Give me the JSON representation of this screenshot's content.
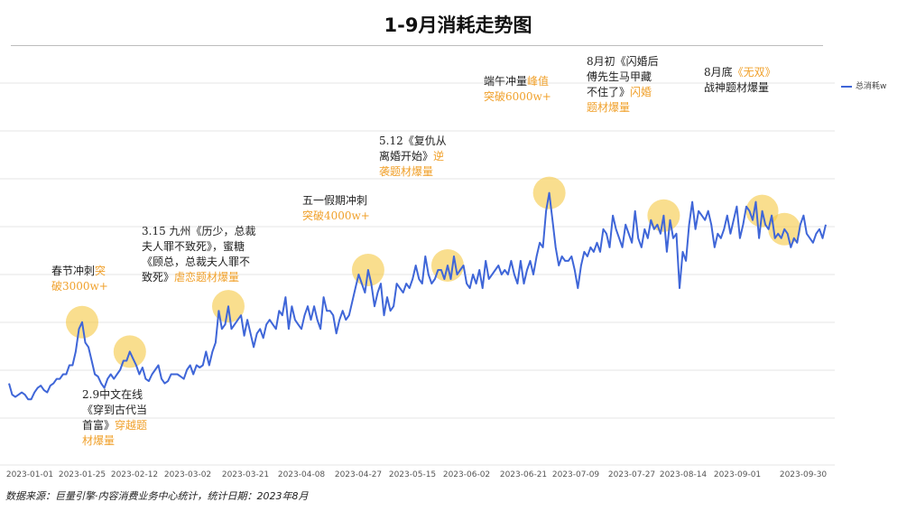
{
  "chart_data": {
    "type": "line",
    "title": "1-9月消耗走势图",
    "xlabel": "",
    "ylabel": "",
    "series_name": "总消耗w",
    "line_color": "#3f66d8",
    "highlight_color": "#f5c842",
    "accent_color": "#f0a02a",
    "grid": true,
    "legend": "right",
    "x_ticks": [
      "2023-01-01",
      "2023-01-25",
      "2023-02-12",
      "2023-03-02",
      "2023-03-21",
      "2023-04-08",
      "2023-04-27",
      "2023-05-15",
      "2023-06-02",
      "2023-06-21",
      "2023-07-09",
      "2023-07-27",
      "2023-08-14",
      "2023-09-01",
      "2023-09-30"
    ],
    "x_range": [
      0,
      272
    ],
    "ylim": [
      0,
      8500
    ],
    "values": [
      1800,
      1550,
      1500,
      1550,
      1600,
      1550,
      1450,
      1450,
      1600,
      1700,
      1750,
      1650,
      1600,
      1750,
      1800,
      1900,
      1900,
      2000,
      2000,
      2200,
      2200,
      2500,
      3000,
      3150,
      2700,
      2600,
      2300,
      2000,
      1950,
      1800,
      1700,
      1900,
      2000,
      1900,
      2000,
      2100,
      2300,
      2300,
      2500,
      2350,
      2200,
      2000,
      2150,
      1900,
      1850,
      2000,
      2100,
      2200,
      1900,
      1800,
      1850,
      2000,
      2000,
      2000,
      1950,
      1900,
      2100,
      2200,
      2000,
      2200,
      2150,
      2200,
      2500,
      2200,
      2500,
      2700,
      3400,
      3000,
      3100,
      3500,
      3000,
      3100,
      3200,
      3300,
      2850,
      3200,
      2900,
      2600,
      2900,
      3000,
      2800,
      3100,
      3200,
      3100,
      3000,
      3400,
      3300,
      3700,
      3000,
      3500,
      3200,
      3100,
      3000,
      3300,
      3500,
      3200,
      3500,
      3200,
      3000,
      3700,
      3400,
      3400,
      3300,
      2900,
      3200,
      3400,
      3200,
      3300,
      3600,
      3900,
      4200,
      4000,
      3800,
      4300,
      4000,
      3500,
      3800,
      4000,
      3300,
      3700,
      3400,
      3500,
      4000,
      3900,
      3800,
      4000,
      3900,
      4100,
      4400,
      4100,
      4000,
      4600,
      4200,
      4000,
      4100,
      4300,
      4300,
      4100,
      4400,
      4100,
      4600,
      4200,
      4300,
      4400,
      4000,
      3900,
      4200,
      4000,
      4300,
      3900,
      4500,
      4100,
      4200,
      4300,
      4400,
      4200,
      4300,
      4200,
      4500,
      4200,
      4000,
      4500,
      4000,
      4300,
      4500,
      4200,
      4600,
      4900,
      4800,
      5600,
      6000,
      5400,
      4800,
      4400,
      4600,
      4500,
      4500,
      4600,
      4300,
      3900,
      4400,
      4700,
      4600,
      4800,
      4700,
      4900,
      4700,
      5200,
      5100,
      4800,
      5500,
      5200,
      5000,
      4800,
      5300,
      5100,
      4900,
      5600,
      5000,
      4800,
      5200,
      5000,
      5400,
      5200,
      5300,
      5100,
      5500,
      4700,
      5400,
      5000,
      5100,
      3900,
      4700,
      4500,
      5300,
      5800,
      5200,
      5600,
      5500,
      5400,
      5600,
      5300,
      4800,
      5100,
      5000,
      5200,
      5500,
      5100,
      5400,
      5700,
      5000,
      5300,
      5700,
      5600,
      5400,
      5800,
      5000,
      5600,
      5300,
      5200,
      5500,
      5000,
      5100,
      5000,
      5200,
      5100,
      4800,
      5000,
      4900,
      5300,
      5500,
      5100,
      5000,
      4900,
      5100,
      5200,
      5000,
      5300
    ],
    "highlights": [
      {
        "i": 22,
        "label_black": "春节冲刺",
        "label_orange": "突破3000w+"
      },
      {
        "i": 38,
        "label_black": "2.9中文在线《穿到古代当首富》",
        "label_orange": "穿越题材爆量"
      }
    ],
    "annotations": [
      {
        "id": "a1",
        "lines": [
          [
            "春节冲刺",
            ""
          ],
          [
            "",
            "突"
          ],
          [
            "",
            "破3000w+"
          ]
        ]
      }
    ]
  },
  "annotations_text": {
    "spring": {
      "l1b": "春节冲刺",
      "l1o": "突",
      "l2o": "破3000w+"
    },
    "feb9": {
      "l1": "2.9中文在线",
      "l2": "《穿到古代当",
      "l3": "首富》",
      "l3o": "穿越题",
      "l4o": "材爆量"
    },
    "mar15": {
      "l1": "3.15 九州《历少，总裁",
      "l2": "夫人罪不致死》，蜜糖",
      "l3": "《顾总，总裁夫人罪不",
      "l4": "致死》",
      "l4o": "虐恋题材爆量"
    },
    "mayday": {
      "l1": "五一假期冲刺",
      "l2o": "突破4000w+"
    },
    "may12": {
      "l1": "5.12《复仇从",
      "l2": "离婚开始》",
      "l2o": "逆",
      "l3o": "袭题材爆量"
    },
    "dragon": {
      "l1": "端午冲量",
      "l1o": "峰值",
      "l2o": "突破6000w+"
    },
    "aug1": {
      "l1": "8月初《闪婚后",
      "l2": "傅先生马甲藏",
      "l3": "不住了》",
      "l3o": "闪婚",
      "l4o": "题材爆量"
    },
    "aug31": {
      "l1": "8月底",
      "l1o": "《无双》",
      "l2": "战神题材爆量"
    }
  },
  "source_note": "数据来源：巨量引擎·内容消费业务中心统计，统计日期：2023年8月"
}
